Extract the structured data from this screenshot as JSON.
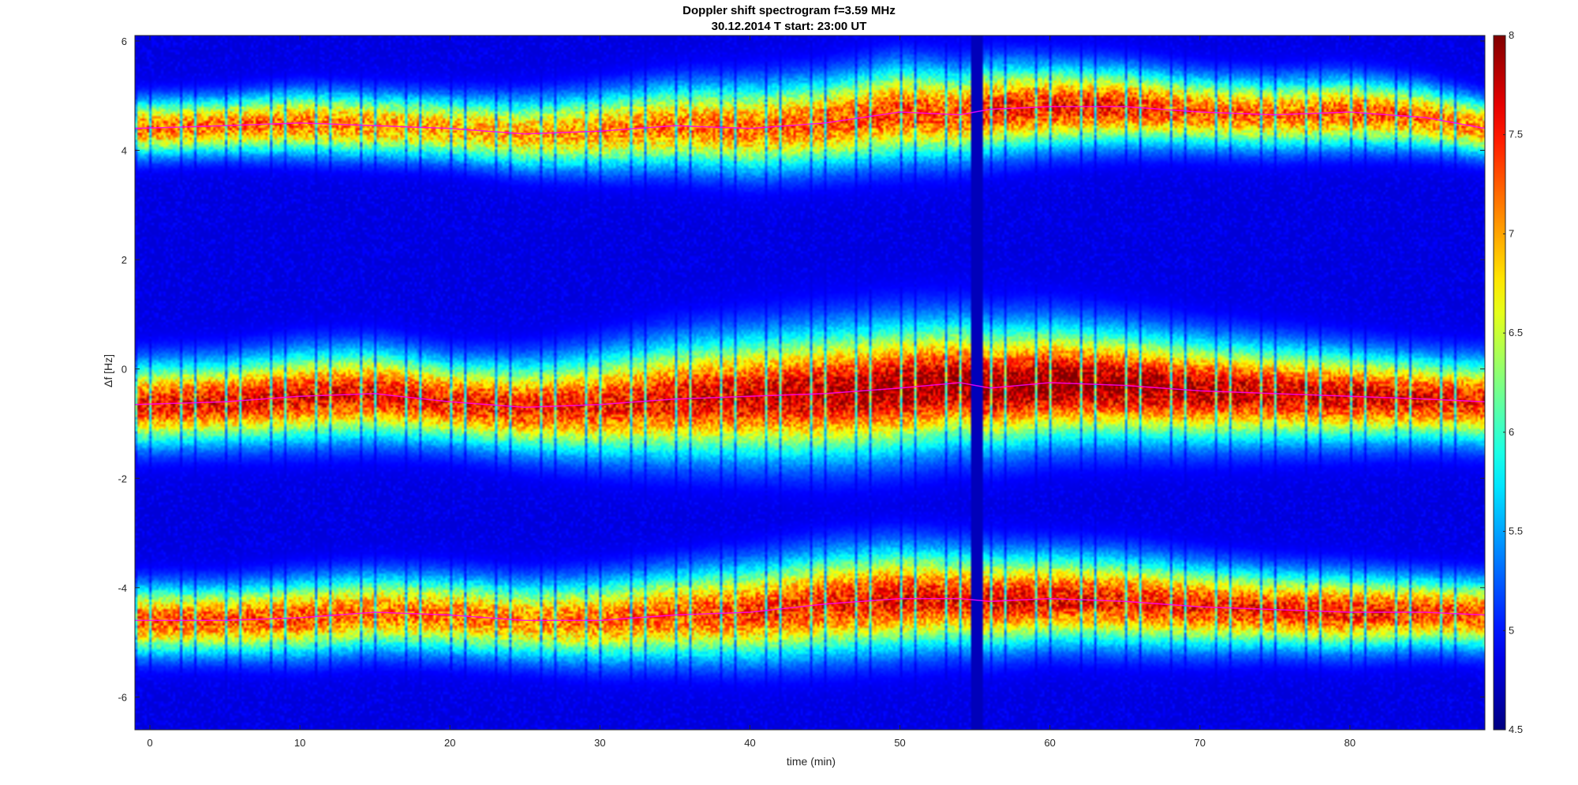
{
  "chart_data": {
    "type": "heatmap",
    "title": "Doppler shift spectrogram f=3.59 MHz",
    "subtitle": "30.12.2014   T start: 23:00 UT",
    "xlabel": "time (min)",
    "ylabel": "Δf [Hz]",
    "xlim": [
      -1,
      89
    ],
    "ylim": [
      -6.6,
      6.1
    ],
    "xticks": [
      0,
      10,
      20,
      30,
      40,
      50,
      60,
      70,
      80
    ],
    "yticks": [
      6,
      4,
      2,
      0,
      -2,
      -4,
      -6
    ],
    "ytick_labels": [
      "6",
      "4",
      "2",
      "0",
      "-2",
      "-4",
      "-6"
    ],
    "colorbar": {
      "clim": [
        4.5,
        8
      ],
      "ticks": [
        8,
        7.5,
        7,
        6.5,
        6,
        5.5,
        5,
        4.5
      ],
      "tick_labels": [
        "8",
        "7.5",
        "7",
        "6.5",
        "6",
        "5.5",
        "5",
        "4.5"
      ],
      "colormap": "jet"
    },
    "data_gap": {
      "x": [
        54.7,
        55.6
      ]
    },
    "background_level": 4.8,
    "traces": [
      {
        "band": "upper",
        "x": [
          -1,
          5,
          10,
          15,
          20,
          25,
          30,
          35,
          40,
          45,
          50,
          54,
          56,
          60,
          65,
          70,
          75,
          80,
          85,
          89
        ],
        "y": [
          4.4,
          4.45,
          4.5,
          4.45,
          4.4,
          4.3,
          4.35,
          4.45,
          4.4,
          4.5,
          4.7,
          4.65,
          4.75,
          4.8,
          4.8,
          4.7,
          4.65,
          4.7,
          4.6,
          4.4
        ],
        "halfwidth": [
          0.45,
          0.45,
          0.5,
          0.5,
          0.5,
          0.55,
          0.6,
          0.65,
          0.7,
          0.7,
          0.75,
          0.7,
          0.7,
          0.65,
          0.6,
          0.55,
          0.55,
          0.55,
          0.5,
          0.45
        ],
        "peak": [
          7.2,
          7.2,
          7.2,
          7.1,
          7.0,
          7.0,
          7.1,
          7.2,
          7.2,
          7.3,
          7.4,
          7.3,
          7.5,
          7.5,
          7.5,
          7.3,
          7.2,
          7.3,
          7.2,
          7.1
        ]
      },
      {
        "band": "middle",
        "x": [
          -1,
          5,
          10,
          15,
          20,
          25,
          30,
          35,
          40,
          45,
          50,
          54,
          56,
          60,
          65,
          70,
          75,
          80,
          85,
          89
        ],
        "y": [
          -0.65,
          -0.6,
          -0.5,
          -0.45,
          -0.6,
          -0.7,
          -0.65,
          -0.55,
          -0.5,
          -0.45,
          -0.35,
          -0.25,
          -0.35,
          -0.25,
          -0.3,
          -0.4,
          -0.45,
          -0.5,
          -0.55,
          -0.6
        ],
        "halfwidth": [
          0.65,
          0.65,
          0.7,
          0.7,
          0.65,
          0.7,
          0.8,
          0.9,
          0.95,
          1.0,
          1.0,
          0.95,
          0.95,
          0.9,
          0.85,
          0.8,
          0.75,
          0.7,
          0.65,
          0.65
        ],
        "peak": [
          7.5,
          7.6,
          7.6,
          7.6,
          7.5,
          7.5,
          7.5,
          7.6,
          7.7,
          7.8,
          7.9,
          7.9,
          7.9,
          8.0,
          7.9,
          7.8,
          7.7,
          7.7,
          7.6,
          7.5
        ]
      },
      {
        "band": "lower",
        "x": [
          -1,
          5,
          10,
          15,
          20,
          25,
          30,
          35,
          40,
          45,
          50,
          54,
          56,
          60,
          65,
          70,
          75,
          80,
          85,
          89
        ],
        "y": [
          -4.6,
          -4.6,
          -4.55,
          -4.45,
          -4.5,
          -4.6,
          -4.6,
          -4.5,
          -4.45,
          -4.3,
          -4.2,
          -4.2,
          -4.25,
          -4.2,
          -4.25,
          -4.35,
          -4.4,
          -4.45,
          -4.45,
          -4.5
        ],
        "halfwidth": [
          0.55,
          0.55,
          0.6,
          0.6,
          0.6,
          0.6,
          0.65,
          0.7,
          0.75,
          0.8,
          0.8,
          0.75,
          0.75,
          0.7,
          0.7,
          0.65,
          0.6,
          0.6,
          0.55,
          0.55
        ],
        "peak": [
          7.3,
          7.3,
          7.3,
          7.2,
          7.2,
          7.1,
          7.2,
          7.3,
          7.4,
          7.5,
          7.6,
          7.5,
          7.6,
          7.6,
          7.5,
          7.5,
          7.5,
          7.5,
          7.4,
          7.3
        ]
      }
    ]
  },
  "colors": {
    "trace_line": "#ff00ff",
    "frame": "#000000",
    "gap_fill": "#00008f"
  }
}
